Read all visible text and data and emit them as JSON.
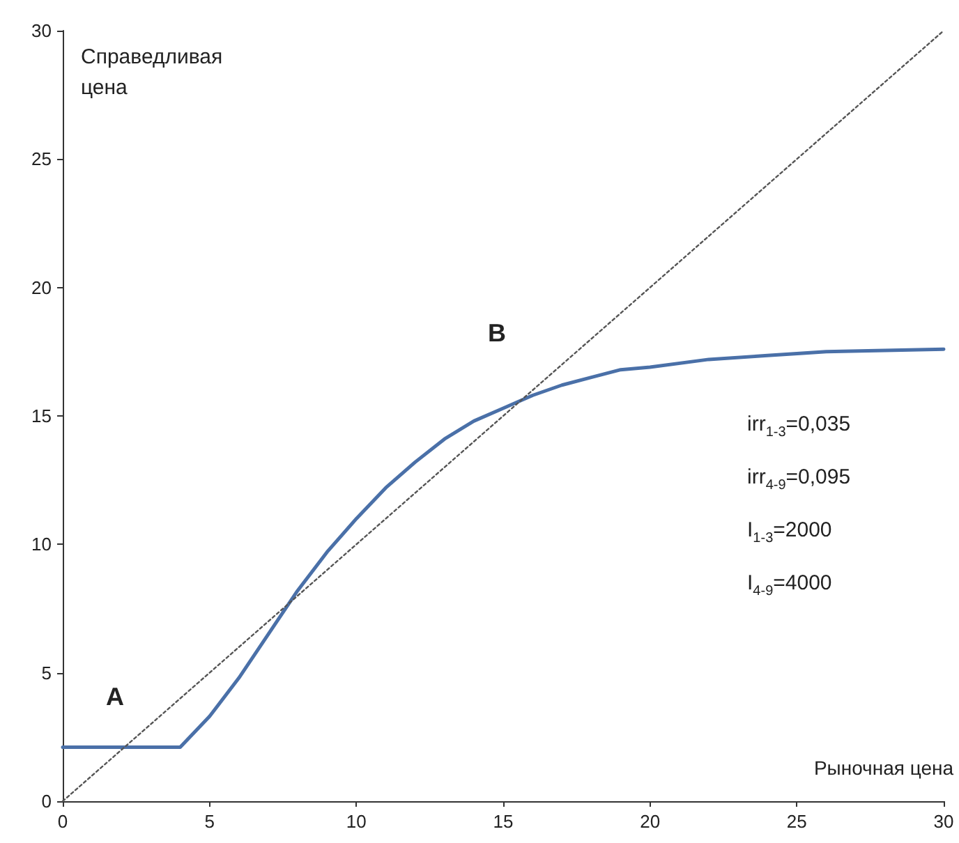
{
  "chart_data": {
    "type": "line",
    "xlabel": "Рыночная цена",
    "ylabel": "Справедливая\nцена",
    "xlim": [
      0,
      30
    ],
    "xticks": [
      0,
      5,
      10,
      15,
      20,
      25,
      30
    ],
    "ylim": [
      0,
      30
    ],
    "yticks": [
      0,
      5,
      10,
      15,
      20,
      25,
      30
    ],
    "grid": false,
    "marker": "none",
    "series": [
      {
        "color": "#4a70a8",
        "line_style": "solid",
        "x": [
          0,
          4,
          5,
          6,
          7,
          8,
          9,
          10,
          11,
          12,
          13,
          14,
          15,
          16,
          17,
          18,
          19,
          20,
          22,
          24,
          26,
          28,
          30
        ],
        "values": [
          2.1,
          2.1,
          3.3,
          4.8,
          6.5,
          8.2,
          9.7,
          11.0,
          12.2,
          13.2,
          14.1,
          14.8,
          15.3,
          15.8,
          16.2,
          16.5,
          16.8,
          16.9,
          17.2,
          17.35,
          17.5,
          17.55,
          17.6
        ]
      },
      {
        "color": "#555555",
        "line_style": "dotted",
        "x": [
          0,
          30
        ],
        "values": [
          0,
          30
        ]
      }
    ],
    "annotations": [
      "A",
      "B",
      "irr$_{1-3}$=0,035",
      "irr$_{4-9}$=0,095",
      "I$_{1-3}$=2000",
      "I$_{4-9}$=4000"
    ]
  }
}
